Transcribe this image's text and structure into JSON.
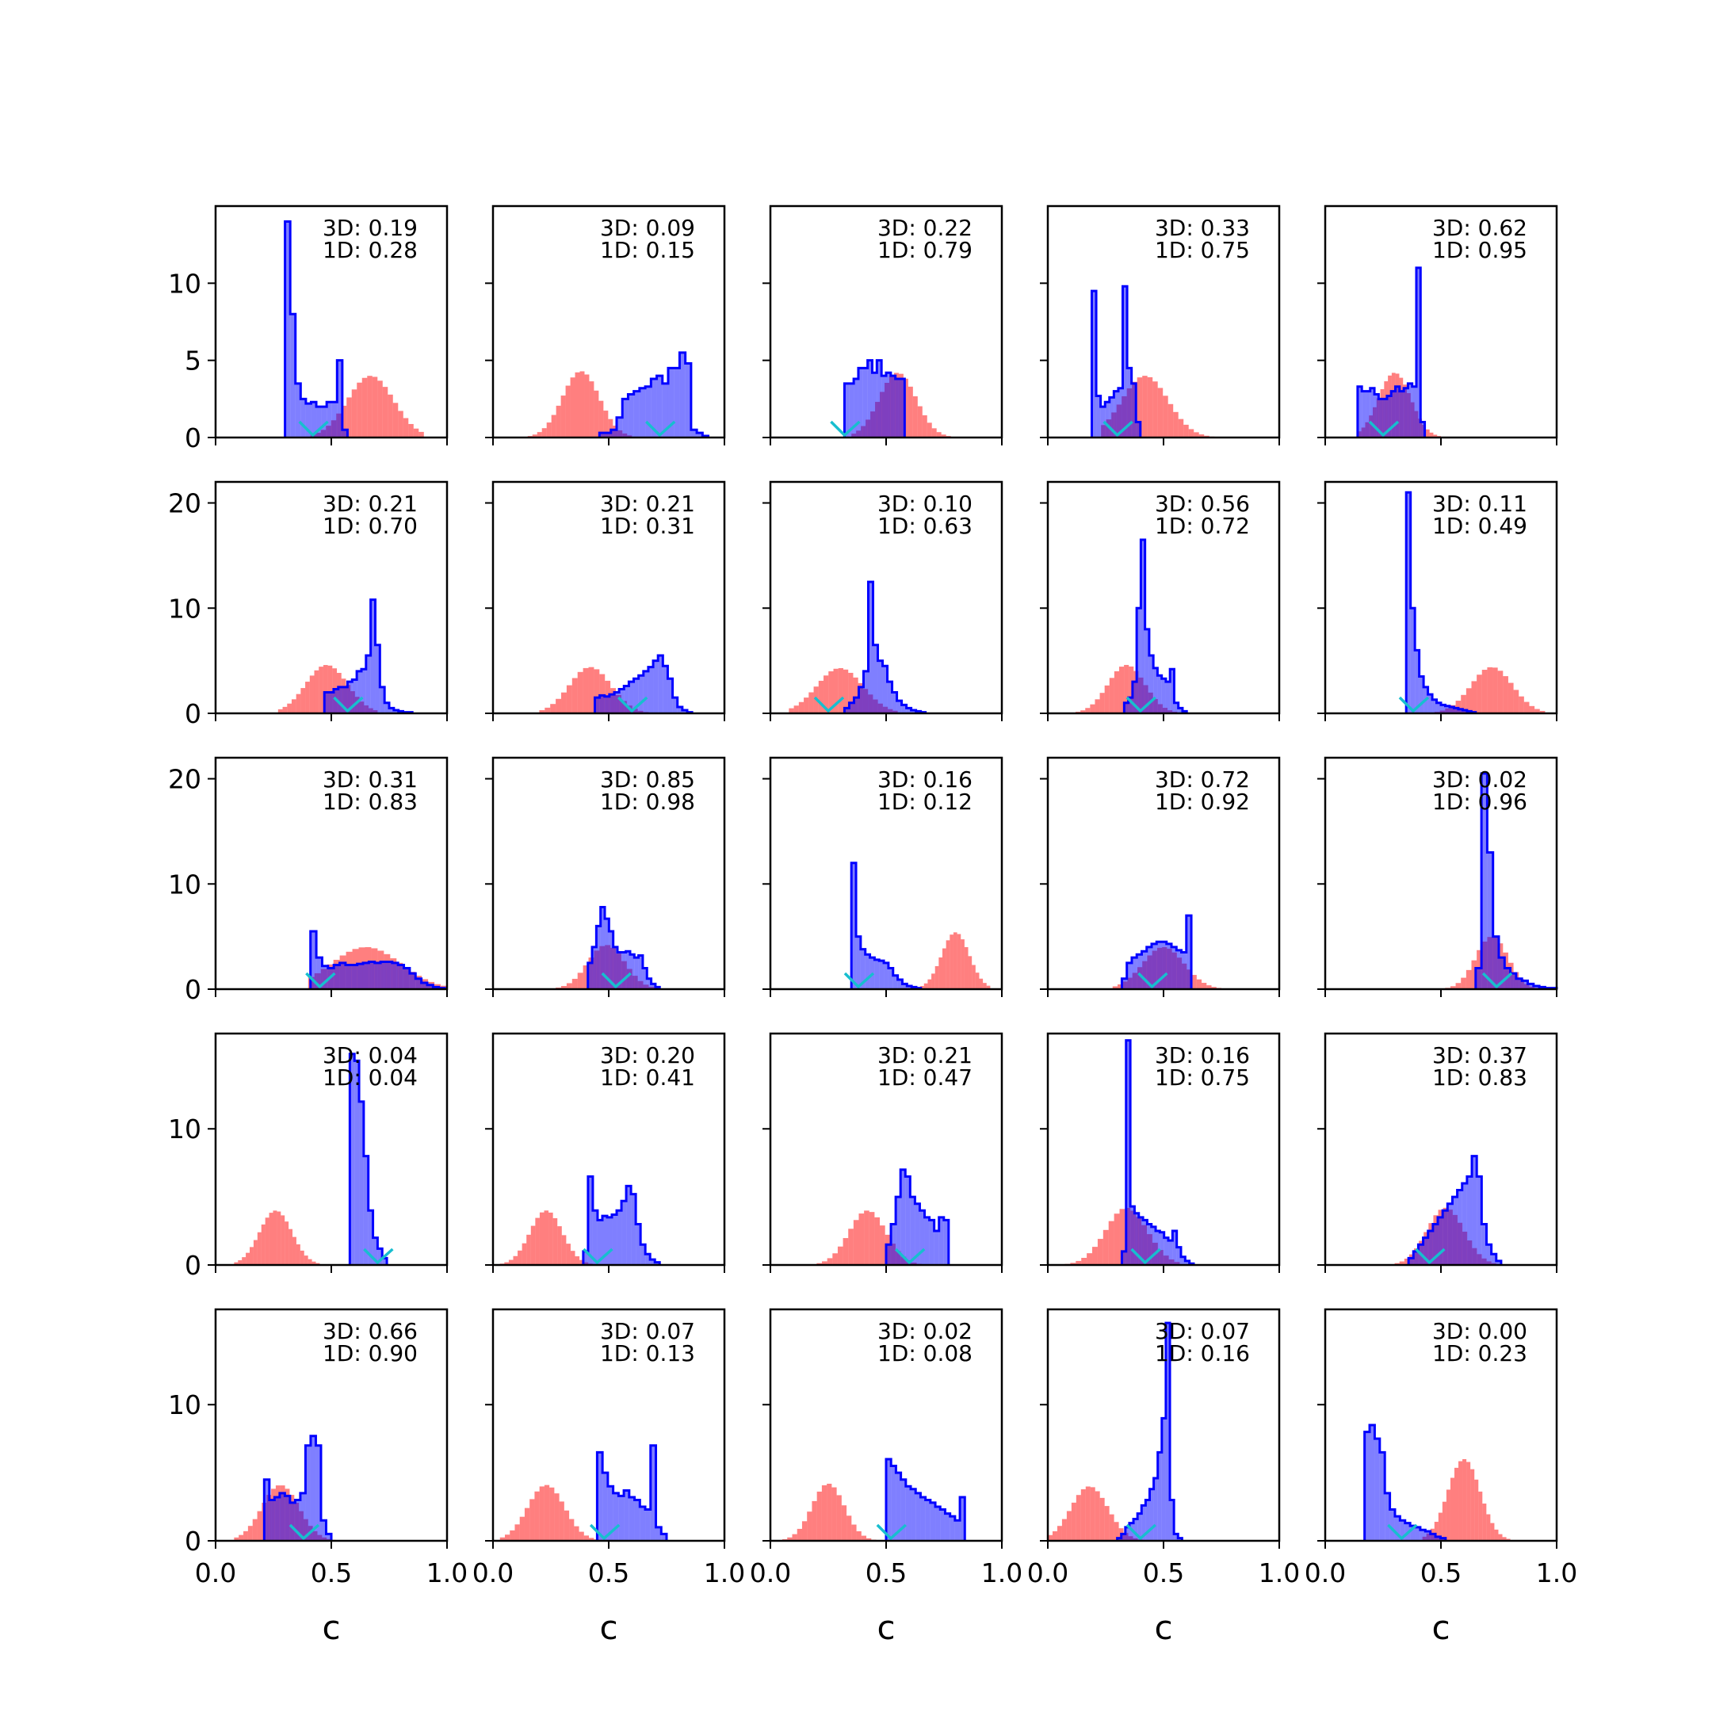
{
  "colors": {
    "blue": "#0000ff",
    "red": "#ff0000",
    "cyan": "#17becf",
    "axis": "#000000"
  },
  "chart_data": {
    "type": "histogram-grid",
    "rows": 5,
    "cols": 5,
    "xlabel": "c",
    "xlim": [
      0.0,
      1.0
    ],
    "xticks": [
      0.0,
      0.5,
      1.0
    ],
    "xtick_labels": [
      "0.0",
      "0.5",
      "1.0"
    ],
    "row_ylim": [
      [
        0,
        15
      ],
      [
        0,
        22
      ],
      [
        0,
        22
      ],
      [
        0,
        17
      ],
      [
        0,
        17
      ]
    ],
    "row_yticks": [
      [
        0,
        5,
        10
      ],
      [
        0,
        10,
        20
      ],
      [
        0,
        10,
        20
      ],
      [
        0,
        10
      ],
      [
        0,
        10
      ]
    ],
    "row_ytick_labels": [
      [
        "0",
        "5",
        "10"
      ],
      [
        "0",
        "10",
        "20"
      ],
      [
        "0",
        "10",
        "20"
      ],
      [
        "0",
        "10"
      ],
      [
        "0",
        "10"
      ]
    ],
    "panels": [
      {
        "label3d": "3D: 0.19",
        "label1d": "1D: 0.28",
        "blue_range": [
          0.3,
          0.57
        ],
        "blue_values": [
          14,
          8,
          3.5,
          2.5,
          2.2,
          2.3,
          2.0,
          2.0,
          2.3,
          2.3,
          5.0,
          0.5
        ],
        "red_range": [
          0.41,
          0.9
        ],
        "red_mean": 0.67,
        "red_sd": 0.1,
        "red_peak": 4,
        "marker": 0.42
      },
      {
        "label3d": "3D: 0.09",
        "label1d": "1D: 0.15",
        "blue_range": [
          0.46,
          0.93
        ],
        "blue_values": [
          0.3,
          0.3,
          0.5,
          1.3,
          2.5,
          2.8,
          3.0,
          3.2,
          3.3,
          3.8,
          4.0,
          3.5,
          4.5,
          4.5,
          5.5,
          4.8,
          0.5,
          0.3,
          0.1
        ],
        "red_range": [
          0.15,
          0.6
        ],
        "red_mean": 0.38,
        "red_sd": 0.08,
        "red_peak": 4.3,
        "marker": 0.72
      },
      {
        "label3d": "3D: 0.22",
        "label1d": "1D: 0.79",
        "blue_range": [
          0.32,
          0.58
        ],
        "blue_values": [
          3.5,
          3.5,
          3.8,
          4.5,
          4.5,
          5.0,
          4.2,
          5.0,
          4.0,
          4.2,
          4.0,
          3.8,
          3.8
        ],
        "red_range": [
          0.35,
          0.8
        ],
        "red_mean": 0.55,
        "red_sd": 0.08,
        "red_peak": 4.2,
        "marker": 0.32
      },
      {
        "label3d": "3D: 0.33",
        "label1d": "1D: 0.75",
        "blue_range": [
          0.19,
          0.4
        ],
        "blue_values": [
          9.5,
          2.7,
          2.0,
          2.3,
          2.6,
          3.0,
          3.2,
          9.8,
          4.5,
          3.5,
          1.0
        ],
        "red_range": [
          0.23,
          0.72
        ],
        "red_mean": 0.42,
        "red_sd": 0.1,
        "red_peak": 4.0,
        "marker": 0.3
      },
      {
        "label3d": "3D: 0.62",
        "label1d": "1D: 0.95",
        "blue_range": [
          0.14,
          0.43
        ],
        "blue_values": [
          3.3,
          3.0,
          3.0,
          3.2,
          2.8,
          2.5,
          2.5,
          2.7,
          3.0,
          3.3,
          3.0,
          3.2,
          3.5,
          3.3,
          11.0,
          1.0
        ],
        "red_range": [
          0.14,
          0.5
        ],
        "red_mean": 0.3,
        "red_sd": 0.07,
        "red_peak": 4.2,
        "marker": 0.25
      },
      {
        "label3d": "3D: 0.21",
        "label1d": "1D: 0.70",
        "blue_range": [
          0.47,
          0.85
        ],
        "blue_values": [
          2.0,
          2.0,
          2.3,
          2.5,
          2.5,
          3.0,
          3.2,
          4.0,
          4.2,
          5.5,
          10.8,
          6.5,
          2.5,
          1.0,
          0.5,
          0.3,
          0.2,
          0.1,
          0.1
        ],
        "red_range": [
          0.27,
          0.7
        ],
        "red_mean": 0.48,
        "red_sd": 0.09,
        "red_peak": 4.6,
        "marker": 0.57
      },
      {
        "label3d": "3D: 0.21",
        "label1d": "1D: 0.31",
        "blue_range": [
          0.44,
          0.86
        ],
        "blue_values": [
          1.5,
          1.7,
          1.6,
          1.8,
          2.0,
          2.3,
          2.6,
          3.0,
          3.3,
          3.6,
          4.0,
          4.4,
          5.0,
          5.5,
          4.5,
          3.3,
          1.5,
          0.6,
          0.3,
          0.1
        ],
        "red_range": [
          0.2,
          0.72
        ],
        "red_mean": 0.42,
        "red_sd": 0.09,
        "red_peak": 4.4,
        "marker": 0.6
      },
      {
        "label3d": "3D: 0.10",
        "label1d": "1D: 0.63",
        "blue_range": [
          0.32,
          0.67
        ],
        "blue_values": [
          0.5,
          1.0,
          1.5,
          2.5,
          4.0,
          12.5,
          6.5,
          5.0,
          4.5,
          3.0,
          2.0,
          1.2,
          0.8,
          0.5,
          0.3,
          0.2,
          0.1
        ],
        "red_range": [
          0.08,
          0.55
        ],
        "red_mean": 0.3,
        "red_sd": 0.1,
        "red_peak": 4.3,
        "marker": 0.25
      },
      {
        "label3d": "3D: 0.56",
        "label1d": "1D: 0.72",
        "blue_range": [
          0.33,
          0.6
        ],
        "blue_values": [
          1.0,
          1.5,
          3.0,
          10.0,
          16.5,
          8.0,
          5.5,
          4.3,
          3.6,
          3.3,
          3.0,
          4.2,
          1.0,
          0.5,
          0.2
        ],
        "red_range": [
          0.12,
          0.58
        ],
        "red_mean": 0.34,
        "red_sd": 0.08,
        "red_peak": 4.6,
        "marker": 0.4
      },
      {
        "label3d": "3D: 0.11",
        "label1d": "1D: 0.49",
        "blue_range": [
          0.35,
          0.65
        ],
        "blue_values": [
          21.0,
          10.0,
          6.0,
          3.5,
          2.5,
          1.8,
          1.3,
          1.0,
          0.8,
          0.7,
          0.6,
          0.5,
          0.4,
          0.3,
          0.2,
          0.1
        ],
        "red_range": [
          0.45,
          0.95
        ],
        "red_mean": 0.72,
        "red_sd": 0.09,
        "red_peak": 4.4,
        "marker": 0.38
      },
      {
        "label3d": "3D: 0.31",
        "label1d": "1D: 0.83",
        "blue_range": [
          0.41,
          0.99
        ],
        "blue_values": [
          5.5,
          3.0,
          2.2,
          2.0,
          2.3,
          2.5,
          2.3,
          2.3,
          2.4,
          2.5,
          2.6,
          2.5,
          2.6,
          2.6,
          2.5,
          2.3,
          2.0,
          1.5,
          1.0,
          0.6,
          0.4,
          0.2,
          0.1
        ],
        "red_range": [
          0.4,
          1.0
        ],
        "red_mean": 0.65,
        "red_sd": 0.15,
        "red_peak": 4.0,
        "marker": 0.45
      },
      {
        "label3d": "3D: 0.85",
        "label1d": "1D: 0.98",
        "blue_range": [
          0.41,
          0.72
        ],
        "blue_values": [
          2.5,
          4.0,
          6.0,
          7.8,
          6.7,
          5.5,
          4.0,
          3.5,
          3.5,
          3.6,
          3.3,
          3.0,
          3.2,
          2.0,
          1.0,
          0.5,
          0.2
        ],
        "red_range": [
          0.2,
          0.72
        ],
        "red_mean": 0.49,
        "red_sd": 0.08,
        "red_peak": 4.2,
        "marker": 0.53
      },
      {
        "label3d": "3D: 0.16",
        "label1d": "1D: 0.12",
        "blue_range": [
          0.35,
          0.65
        ],
        "blue_values": [
          12.0,
          5.0,
          3.8,
          3.3,
          3.0,
          2.8,
          2.7,
          2.5,
          2.0,
          1.3,
          0.9,
          0.5,
          0.3,
          0.2,
          0.1
        ],
        "red_range": [
          0.6,
          0.95
        ],
        "red_mean": 0.8,
        "red_sd": 0.06,
        "red_peak": 5.4,
        "marker": 0.38
      },
      {
        "label3d": "3D: 0.72",
        "label1d": "1D: 0.92",
        "blue_range": [
          0.32,
          0.62
        ],
        "blue_values": [
          1.0,
          2.5,
          3.0,
          3.3,
          3.6,
          4.0,
          4.3,
          4.5,
          4.5,
          4.3,
          4.0,
          3.7,
          3.5,
          7.0
        ],
        "red_range": [
          0.28,
          0.75
        ],
        "red_mean": 0.5,
        "red_sd": 0.09,
        "red_peak": 4.0,
        "marker": 0.45
      },
      {
        "label3d": "3D: 0.02",
        "label1d": "1D: 0.96",
        "blue_range": [
          0.65,
          1.0
        ],
        "blue_values": [
          2.0,
          20.5,
          13.0,
          5.0,
          3.0,
          2.0,
          1.5,
          1.0,
          0.8,
          0.5,
          0.3,
          0.2,
          0.1,
          0.1
        ],
        "red_range": [
          0.45,
          0.95
        ],
        "red_mean": 0.72,
        "red_sd": 0.07,
        "red_peak": 5.0,
        "marker": 0.74
      },
      {
        "label3d": "3D: 0.04",
        "label1d": "1D: 0.04",
        "blue_range": [
          0.58,
          0.74
        ],
        "blue_values": [
          15.5,
          15.0,
          12.0,
          8.0,
          4.0,
          2.0,
          1.2,
          0.5
        ],
        "red_range": [
          0.08,
          0.45
        ],
        "red_mean": 0.26,
        "red_sd": 0.07,
        "red_peak": 4.0,
        "marker": 0.7
      },
      {
        "label3d": "3D: 0.20",
        "label1d": "1D: 0.41",
        "blue_range": [
          0.39,
          0.72
        ],
        "blue_values": [
          1.0,
          6.5,
          4.0,
          3.3,
          3.6,
          3.5,
          3.7,
          4.0,
          4.7,
          5.8,
          5.2,
          3.0,
          1.5,
          0.8,
          0.4,
          0.2
        ],
        "red_range": [
          0.03,
          0.45
        ],
        "red_mean": 0.23,
        "red_sd": 0.07,
        "red_peak": 4.0,
        "marker": 0.45
      },
      {
        "label3d": "3D: 0.21",
        "label1d": "1D: 0.47",
        "blue_range": [
          0.5,
          0.77
        ],
        "blue_values": [
          1.5,
          3.0,
          5.0,
          7.0,
          6.5,
          5.0,
          4.5,
          4.0,
          3.5,
          3.3,
          2.5,
          3.5,
          3.3
        ],
        "red_range": [
          0.2,
          0.7
        ],
        "red_mean": 0.42,
        "red_sd": 0.08,
        "red_peak": 4.0,
        "marker": 0.6
      },
      {
        "label3d": "3D: 0.16",
        "label1d": "1D: 0.75",
        "blue_range": [
          0.32,
          0.63
        ],
        "blue_values": [
          1.0,
          16.5,
          4.3,
          3.8,
          3.5,
          3.3,
          3.0,
          2.8,
          2.5,
          2.4,
          2.0,
          1.8,
          2.5,
          1.3,
          0.6,
          0.3,
          0.1
        ],
        "red_range": [
          0.05,
          0.57
        ],
        "red_mean": 0.34,
        "red_sd": 0.09,
        "red_peak": 4.2,
        "marker": 0.42
      },
      {
        "label3d": "3D: 0.37",
        "label1d": "1D: 0.83",
        "blue_range": [
          0.36,
          0.76
        ],
        "blue_values": [
          0.5,
          1.0,
          1.5,
          2.0,
          2.5,
          3.0,
          3.5,
          4.0,
          4.5,
          5.0,
          5.5,
          6.0,
          6.5,
          8.0,
          6.5,
          3.0,
          1.5,
          0.8,
          0.3
        ],
        "red_range": [
          0.3,
          0.76
        ],
        "red_mean": 0.52,
        "red_sd": 0.08,
        "red_peak": 4.2,
        "marker": 0.45
      },
      {
        "label3d": "3D: 0.66",
        "label1d": "1D: 0.90",
        "blue_range": [
          0.21,
          0.5
        ],
        "blue_values": [
          4.5,
          3.0,
          3.2,
          3.5,
          3.3,
          2.8,
          3.0,
          3.5,
          7.0,
          7.7,
          7.0,
          1.5,
          0.5
        ],
        "red_range": [
          0.08,
          0.52
        ],
        "red_mean": 0.28,
        "red_sd": 0.08,
        "red_peak": 4.1,
        "marker": 0.38
      },
      {
        "label3d": "3D: 0.07",
        "label1d": "1D: 0.13",
        "blue_range": [
          0.45,
          0.75
        ],
        "blue_values": [
          6.5,
          5.0,
          4.0,
          3.5,
          3.3,
          3.7,
          3.2,
          3.0,
          2.5,
          2.3,
          7.0,
          1.0,
          0.5
        ],
        "red_range": [
          0.03,
          0.5
        ],
        "red_mean": 0.23,
        "red_sd": 0.08,
        "red_peak": 4.1,
        "marker": 0.48
      },
      {
        "label3d": "3D: 0.02",
        "label1d": "1D: 0.08",
        "blue_range": [
          0.5,
          0.84
        ],
        "blue_values": [
          6.0,
          5.5,
          5.0,
          4.5,
          4.0,
          3.8,
          3.5,
          3.2,
          3.0,
          2.8,
          2.5,
          2.3,
          2.0,
          1.8,
          1.5,
          3.2
        ],
        "red_range": [
          0.03,
          0.5
        ],
        "red_mean": 0.25,
        "red_sd": 0.07,
        "red_peak": 4.2,
        "marker": 0.52
      },
      {
        "label3d": "3D: 0.07",
        "label1d": "1D: 0.16",
        "blue_range": [
          0.3,
          0.58
        ],
        "blue_values": [
          0.2,
          0.5,
          1.0,
          1.3,
          1.6,
          2.0,
          2.6,
          3.0,
          3.8,
          4.6,
          6.5,
          9.0,
          16.0,
          3.0,
          0.5,
          0.2
        ],
        "red_range": [
          0.0,
          0.45
        ],
        "red_mean": 0.18,
        "red_sd": 0.08,
        "red_peak": 4.0,
        "marker": 0.4
      },
      {
        "label3d": "3D: 0.00",
        "label1d": "1D: 0.23",
        "blue_range": [
          0.17,
          0.52
        ],
        "blue_values": [
          8.0,
          8.5,
          7.5,
          6.5,
          3.5,
          2.3,
          1.8,
          1.5,
          1.3,
          1.1,
          1.0,
          0.8,
          0.7,
          0.5,
          0.3,
          0.2
        ],
        "red_range": [
          0.42,
          0.8
        ],
        "red_mean": 0.6,
        "red_sd": 0.07,
        "red_peak": 6.0,
        "marker": 0.33
      }
    ]
  }
}
